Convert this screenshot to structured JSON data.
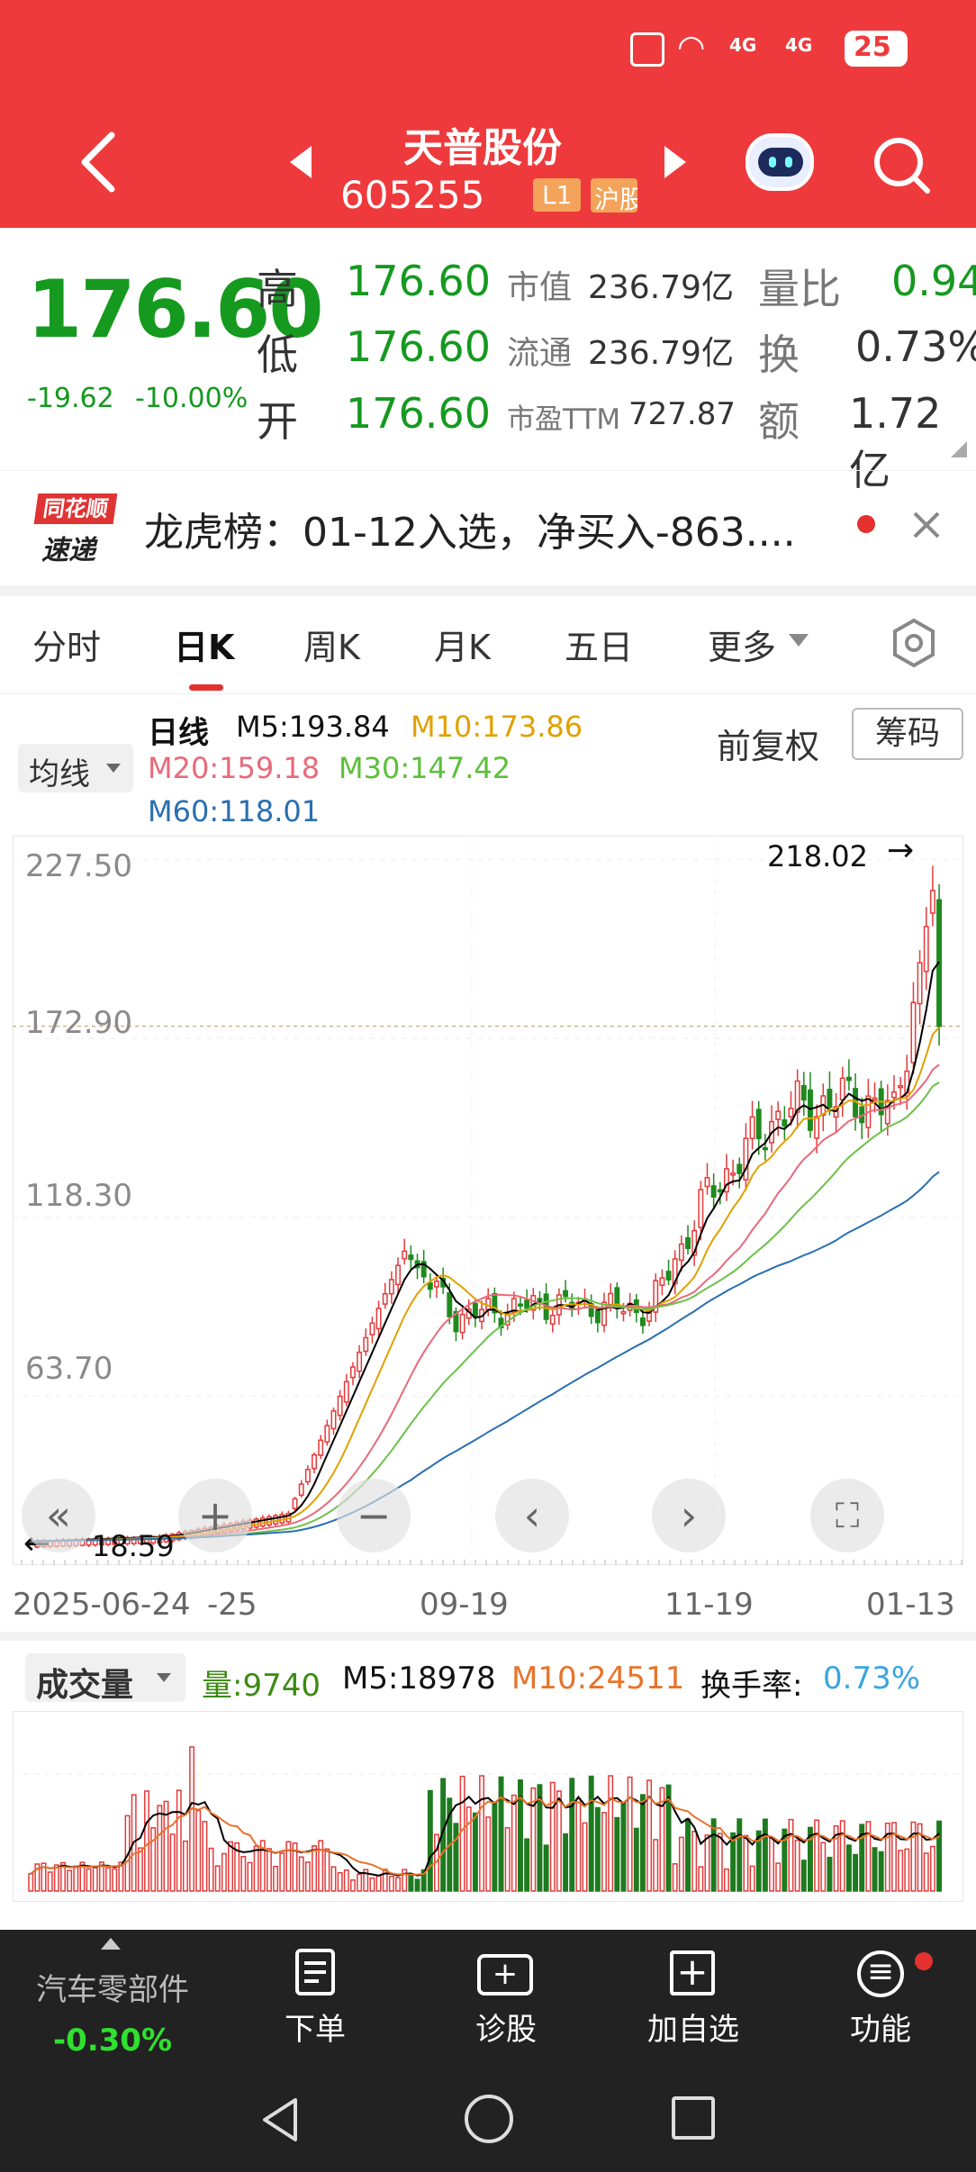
{
  "status_bar": {
    "battery": "25",
    "signal": "4G"
  },
  "header": {
    "stock_name": "天普股份",
    "stock_code": "605255",
    "level_badge": "L1",
    "market_badge": "沪股"
  },
  "quote": {
    "price": "176.60",
    "change": "-19.62",
    "change_pct": "-10.00%",
    "high_label": "高",
    "high": "176.60",
    "low_label": "低",
    "low": "176.60",
    "open_label": "开",
    "open": "176.60",
    "mktcap_label": "市值",
    "mktcap": "236.79亿",
    "float_label": "流通",
    "float": "236.79亿",
    "pe_label": "市盈TTM",
    "pe": "727.87",
    "volratio_label": "量比",
    "volratio": "0.94",
    "turnover_label": "换",
    "turnover": "0.73%",
    "amount_label": "额",
    "amount": "1.72亿"
  },
  "news": {
    "logo_top": "同花顺",
    "logo_bottom": "速递",
    "text": "龙虎榜：01-12入选，净买入-863...."
  },
  "tabs": [
    {
      "label": "分时"
    },
    {
      "label": "日K"
    },
    {
      "label": "周K"
    },
    {
      "label": "月K"
    },
    {
      "label": "五日"
    },
    {
      "label": "更多"
    }
  ],
  "chart_header": {
    "ma_dropdown": "均线",
    "period": "日线",
    "m5": "M5:193.84",
    "m10": "M10:173.86",
    "m20": "M20:159.18",
    "m30": "M30:147.42",
    "m60": "M60:118.01",
    "adjust": "前复权",
    "chips": "筹码"
  },
  "volume_header": {
    "dropdown": "成交量",
    "vol": "量:9740",
    "m5": "M5:18978",
    "m10": "M10:24511",
    "turnover_label": "换手率:",
    "turnover": "0.73%"
  },
  "bottom_bar": {
    "sector": "汽车零部件",
    "sector_change": "-0.30%",
    "order": "下单",
    "diagnose": "诊股",
    "watchlist": "加自选",
    "function": "功能"
  },
  "chart_data": [
    {
      "type": "candlestick",
      "title": "日线",
      "y_ticks": [
        "227.50",
        "172.90",
        "118.30",
        "63.70"
      ],
      "x_ticks": [
        "2025-06-24",
        "25",
        "09-19",
        "11-19",
        "01-13"
      ],
      "ylim": [
        15,
        232
      ],
      "max_label": "218.02",
      "min_label": "18.59",
      "colors": {
        "up": "#e23b3b",
        "down": "#1f8a1f",
        "ma5": "#000000",
        "ma10": "#e0a100",
        "ma20": "#e86a7a",
        "ma30": "#6cc24a",
        "ma60": "#2a6fb0"
      },
      "grid": true,
      "candles_summary": [
        {
          "idx": 0,
          "close": 19.5
        },
        {
          "idx": 20,
          "close": 21
        },
        {
          "idx": 40,
          "close": 28
        },
        {
          "idx": 55,
          "close": 95
        },
        {
          "idx": 58,
          "close": 108
        },
        {
          "idx": 66,
          "close": 88
        },
        {
          "idx": 80,
          "close": 92
        },
        {
          "idx": 96,
          "close": 90
        },
        {
          "idx": 105,
          "close": 125
        },
        {
          "idx": 116,
          "close": 150
        },
        {
          "idx": 128,
          "close": 155
        },
        {
          "idx": 134,
          "close": 150
        },
        {
          "idx": 138,
          "close": 196
        },
        {
          "idx": 140,
          "close": 218.02
        },
        {
          "idx": 141,
          "close": 176.6
        }
      ]
    },
    {
      "type": "bar",
      "title": "成交量",
      "series": [
        {
          "name": "量",
          "last": 9740
        },
        {
          "name": "M5",
          "last": 18978
        },
        {
          "name": "M10",
          "last": 24511
        }
      ],
      "colors": {
        "up": "#e23b3b",
        "down": "#1f7a1f",
        "m5": "#000000",
        "m10": "#e8732a"
      }
    }
  ]
}
